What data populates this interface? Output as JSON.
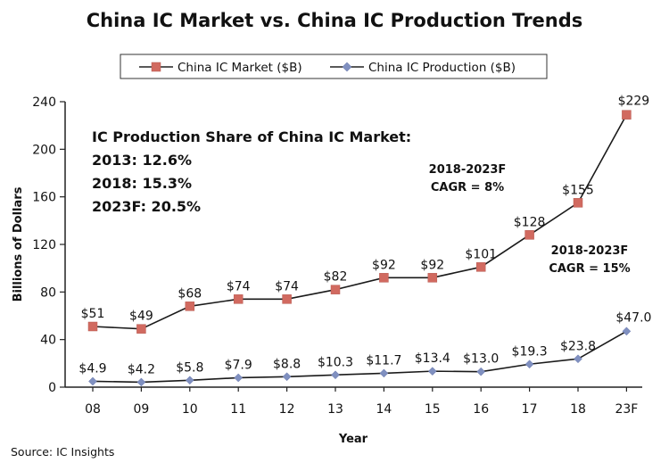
{
  "chart_data": {
    "type": "line",
    "title": "China IC Market vs. China IC Production Trends",
    "xlabel": "Year",
    "ylabel": "Billions of Dollars",
    "categories": [
      "08",
      "09",
      "10",
      "11",
      "12",
      "13",
      "14",
      "15",
      "16",
      "17",
      "18",
      "23F"
    ],
    "ylim": [
      0,
      240
    ],
    "yticks": [
      0,
      40,
      80,
      120,
      160,
      200,
      240
    ],
    "grid": false,
    "legend_position": "top",
    "series": [
      {
        "name": "China IC Market ($B)",
        "color": "#d16a60",
        "marker": "square",
        "values": [
          51,
          49,
          68,
          74,
          74,
          82,
          92,
          92,
          101,
          128,
          155,
          229
        ],
        "labels": [
          "$51",
          "$49",
          "$68",
          "$74",
          "$74",
          "$82",
          "$92",
          "$92",
          "$101",
          "$128",
          "$155",
          "$229"
        ]
      },
      {
        "name": "China IC Production ($B)",
        "color": "#8090c0",
        "marker": "diamond",
        "values": [
          4.9,
          4.2,
          5.8,
          7.9,
          8.8,
          10.3,
          11.7,
          13.4,
          13.0,
          19.3,
          23.8,
          47.0
        ],
        "labels": [
          "$4.9",
          "$4.2",
          "$5.8",
          "$7.9",
          "$8.8",
          "$10.3",
          "$11.7",
          "$13.4",
          "$13.0",
          "$19.3",
          "$23.8",
          "$47.0"
        ]
      }
    ],
    "annotations": {
      "share_heading": "IC Production Share of China IC Market:",
      "share_lines": [
        "2013: 12.6%",
        "2018: 15.3%",
        "2023F: 20.5%"
      ],
      "cagr_market": [
        "2018-2023F",
        "CAGR = 8%"
      ],
      "cagr_production": [
        "2018-2023F",
        "CAGR = 15%"
      ]
    },
    "source": "Source: IC Insights"
  }
}
